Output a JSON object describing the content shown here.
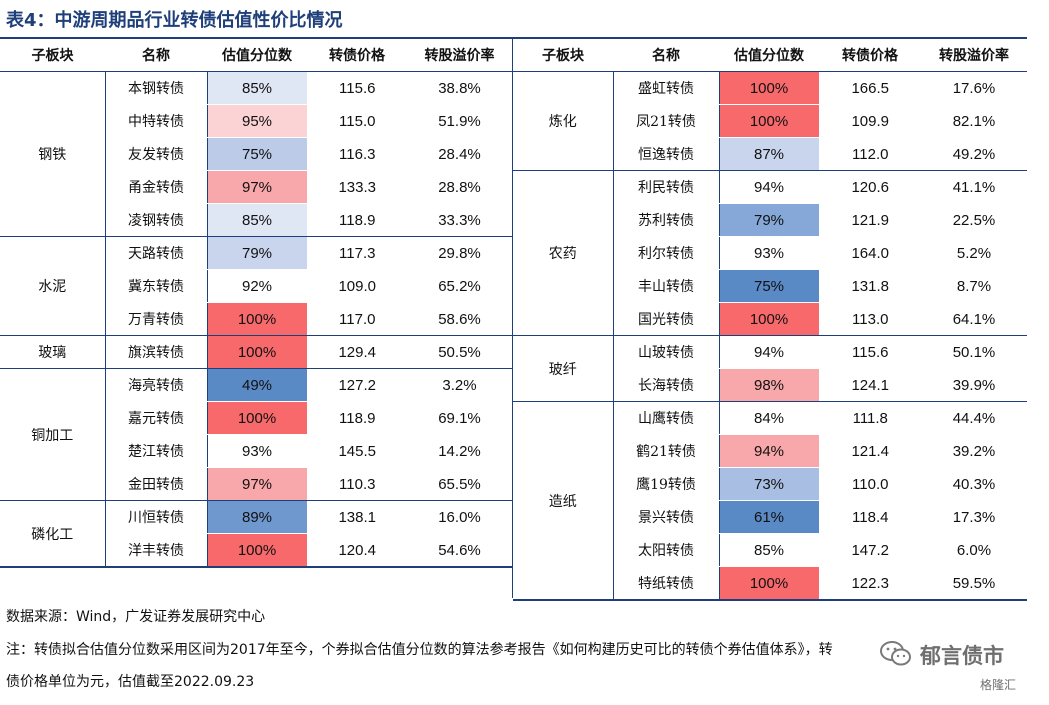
{
  "title": "表4：中游周期品行业转债估值性价比情况",
  "headers": [
    "子板块",
    "名称",
    "估值分位数",
    "转债价格",
    "转股溢价率"
  ],
  "left_groups": [
    {
      "sector": "钢铁",
      "rows": [
        {
          "name": "本钢转债",
          "pct": "85%",
          "price": "115.6",
          "premium": "38.8%",
          "color": "#dfe6f4"
        },
        {
          "name": "中特转债",
          "pct": "95%",
          "price": "115.0",
          "premium": "51.9%",
          "color": "#fbd3d5"
        },
        {
          "name": "友发转债",
          "pct": "75%",
          "price": "116.3",
          "premium": "28.4%",
          "color": "#bccbe8"
        },
        {
          "name": "甬金转债",
          "pct": "97%",
          "price": "133.3",
          "premium": "28.8%",
          "color": "#f8a7aa"
        },
        {
          "name": "凌钢转债",
          "pct": "85%",
          "price": "118.9",
          "premium": "33.3%",
          "color": "#dfe6f4"
        }
      ]
    },
    {
      "sector": "水泥",
      "rows": [
        {
          "name": "天路转债",
          "pct": "79%",
          "price": "117.3",
          "premium": "29.8%",
          "color": "#c9d5ec"
        },
        {
          "name": "冀东转债",
          "pct": "92%",
          "price": "109.0",
          "premium": "65.2%",
          "color": "#ffffff"
        },
        {
          "name": "万青转债",
          "pct": "100%",
          "price": "117.0",
          "premium": "58.6%",
          "color": "#f8696b"
        }
      ]
    },
    {
      "sector": "玻璃",
      "rows": [
        {
          "name": "旗滨转债",
          "pct": "100%",
          "price": "129.4",
          "premium": "50.5%",
          "color": "#f8696b"
        }
      ]
    },
    {
      "sector": "铜加工",
      "rows": [
        {
          "name": "海亮转债",
          "pct": "49%",
          "price": "127.2",
          "premium": "3.2%",
          "color": "#5a8ac6"
        },
        {
          "name": "嘉元转债",
          "pct": "100%",
          "price": "118.9",
          "premium": "69.1%",
          "color": "#f8696b"
        },
        {
          "name": "楚江转债",
          "pct": "93%",
          "price": "145.5",
          "premium": "14.2%",
          "color": "#ffffff"
        },
        {
          "name": "金田转债",
          "pct": "97%",
          "price": "110.3",
          "premium": "65.5%",
          "color": "#f8a7aa"
        }
      ]
    },
    {
      "sector": "磷化工",
      "rows": [
        {
          "name": "川恒转债",
          "pct": "89%",
          "price": "138.1",
          "premium": "16.0%",
          "color": "#6f98cf"
        },
        {
          "name": "洋丰转债",
          "pct": "100%",
          "price": "120.4",
          "premium": "54.6%",
          "color": "#f8696b"
        }
      ]
    }
  ],
  "right_groups": [
    {
      "sector": "炼化",
      "rows": [
        {
          "name": "盛虹转债",
          "pct": "100%",
          "price": "166.5",
          "premium": "17.6%",
          "color": "#f8696b"
        },
        {
          "name": "凤21转债",
          "pct": "100%",
          "price": "109.9",
          "premium": "82.1%",
          "color": "#f8696b"
        },
        {
          "name": "恒逸转债",
          "pct": "87%",
          "price": "112.0",
          "premium": "49.2%",
          "color": "#c9d5ec"
        }
      ]
    },
    {
      "sector": "农药",
      "rows": [
        {
          "name": "利民转债",
          "pct": "94%",
          "price": "120.6",
          "premium": "41.1%",
          "color": "#ffffff"
        },
        {
          "name": "苏利转债",
          "pct": "79%",
          "price": "121.9",
          "premium": "22.5%",
          "color": "#86a8d8"
        },
        {
          "name": "利尔转债",
          "pct": "93%",
          "price": "164.0",
          "premium": "5.2%",
          "color": "#ffffff"
        },
        {
          "name": "丰山转债",
          "pct": "75%",
          "price": "131.8",
          "premium": "8.7%",
          "color": "#5a8ac6"
        },
        {
          "name": "国光转债",
          "pct": "100%",
          "price": "113.0",
          "premium": "64.1%",
          "color": "#f8696b"
        }
      ]
    },
    {
      "sector": "玻纤",
      "rows": [
        {
          "name": "山玻转债",
          "pct": "94%",
          "price": "115.6",
          "premium": "50.1%",
          "color": "#ffffff"
        },
        {
          "name": "长海转债",
          "pct": "98%",
          "price": "124.1",
          "premium": "39.9%",
          "color": "#f8a7aa"
        }
      ]
    },
    {
      "sector": "造纸",
      "rows": [
        {
          "name": "山鹰转债",
          "pct": "84%",
          "price": "111.8",
          "premium": "44.4%",
          "color": "#ffffff"
        },
        {
          "name": "鹤21转债",
          "pct": "94%",
          "price": "121.4",
          "premium": "39.2%",
          "color": "#f8a7aa"
        },
        {
          "name": "鹰19转债",
          "pct": "73%",
          "price": "110.0",
          "premium": "40.3%",
          "color": "#a9bee3"
        },
        {
          "name": "景兴转债",
          "pct": "61%",
          "price": "118.4",
          "premium": "17.3%",
          "color": "#5a8ac6"
        },
        {
          "name": "太阳转债",
          "pct": "85%",
          "price": "147.2",
          "premium": "6.0%",
          "color": "#ffffff"
        },
        {
          "name": "特纸转债",
          "pct": "100%",
          "price": "122.3",
          "premium": "59.5%",
          "color": "#f8696b"
        }
      ]
    }
  ],
  "source": "数据来源：Wind，广发证券发展研究中心",
  "note_line1": "注：转债拟合估值分位数采用区间为2017年至今，个券拟合估值分位数的算法参考报告《如何构建历史可比的转债个券估值体系》，转",
  "note_line2": "债价格单位为元，估值截至2022.09.23",
  "watermark": {
    "main": "郁言债市",
    "sub": "格隆汇",
    "icon": "wechat-icon"
  }
}
